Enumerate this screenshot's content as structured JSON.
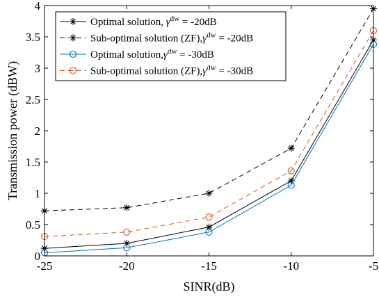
{
  "chart_data": {
    "type": "line",
    "xlabel": "SINR(dB)",
    "ylabel": "Transmission power (dBW)",
    "xlim": [
      -25,
      -5
    ],
    "ylim": [
      0,
      4
    ],
    "xticks": [
      -25,
      -20,
      -15,
      -10,
      -5
    ],
    "yticks": [
      0,
      0.5,
      1,
      1.5,
      2,
      2.5,
      3,
      3.5,
      4
    ],
    "xtick_labels": [
      "-25",
      "-20",
      "-15",
      "-10",
      "-5"
    ],
    "ytick_labels": [
      "0",
      "0.5",
      "1",
      "1.5",
      "2",
      "2.5",
      "3",
      "3.5",
      "4"
    ],
    "grid": false,
    "legend_position": "top-left",
    "x": [
      -25,
      -20,
      -15,
      -10,
      -5
    ],
    "series": [
      {
        "name_main": "Optimal solution, ",
        "name_sup": "dw",
        "name_tail": " = -20dB",
        "values": [
          0.12,
          0.2,
          0.46,
          1.2,
          3.45
        ],
        "color": "#000000",
        "dash": "solid",
        "marker": "asterisk"
      },
      {
        "name_main": "Sub-optimal solution (ZF),",
        "name_sup": "dw",
        "name_tail": " = -20dB",
        "values": [
          0.72,
          0.77,
          1.0,
          1.72,
          3.95
        ],
        "color": "#000000",
        "dash": "dashed",
        "marker": "asterisk"
      },
      {
        "name_main": "Optimal solution,",
        "name_sup": "dw",
        "name_tail": " = -30dB",
        "values": [
          0.05,
          0.13,
          0.38,
          1.13,
          3.38
        ],
        "color": "#0072BD",
        "dash": "solid",
        "marker": "circle"
      },
      {
        "name_main": "Sub-optimal solution (ZF),",
        "name_sup": "dw",
        "name_tail": " = -30dB",
        "values": [
          0.31,
          0.38,
          0.62,
          1.36,
          3.6
        ],
        "color": "#D95319",
        "dash": "dashed",
        "marker": "circle"
      }
    ]
  }
}
